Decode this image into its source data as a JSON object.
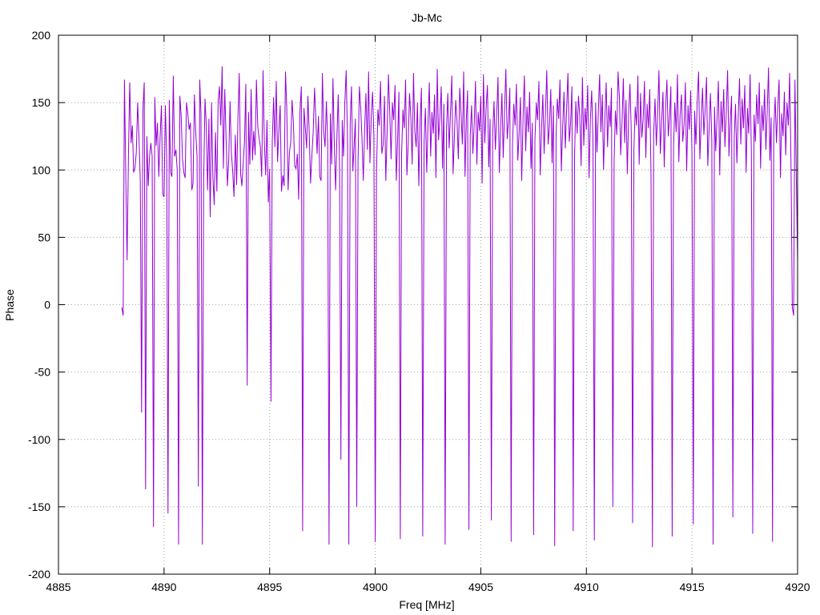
{
  "chart_data": {
    "type": "line",
    "title": "Jb-Mc",
    "xlabel": "Freq [MHz]",
    "ylabel": "Phase",
    "xlim": [
      4885,
      4920
    ],
    "ylim": [
      -200,
      200
    ],
    "x_ticks": [
      4885,
      4890,
      4895,
      4900,
      4905,
      4910,
      4915,
      4920
    ],
    "y_ticks": [
      -200,
      -150,
      -100,
      -50,
      0,
      50,
      100,
      150,
      200
    ],
    "x_tick_labels": [
      "4885",
      "4890",
      "4895",
      "4900",
      "4905",
      "4910",
      "4915",
      "4920"
    ],
    "y_tick_labels": [
      "-200",
      "-150",
      "-100",
      "-50",
      "0",
      "50",
      "100",
      "150",
      "200"
    ],
    "grid": true,
    "legend": "none",
    "line_color": "#9400d3",
    "series": [
      {
        "x_start": 4888.0,
        "x_step": 0.0625,
        "values": [
          -2,
          -8,
          167,
          95,
          33,
          110,
          165,
          120,
          133,
          98,
          102,
          113,
          150,
          125,
          92,
          -80,
          145,
          165,
          -137,
          125,
          88,
          110,
          120,
          110,
          -165,
          154,
          118,
          135,
          95,
          124,
          148,
          82,
          80,
          148,
          108,
          -155,
          152,
          98,
          95,
          170,
          110,
          115,
          100,
          -178,
          155,
          140,
          108,
          98,
          94,
          150,
          142,
          130,
          135,
          85,
          90,
          156,
          128,
          110,
          -135,
          167,
          142,
          -178,
          90,
          153,
          133,
          85,
          138,
          65,
          150,
          95,
          74,
          128,
          84,
          151,
          162,
          133,
          177,
          101,
          160,
          124,
          88,
          107,
          151,
          113,
          99,
          80,
          126,
          89,
          140,
          172,
          97,
          88,
          106,
          122,
          164,
          -60,
          143,
          104,
          160,
          107,
          129,
          111,
          167,
          132,
          124,
          117,
          95,
          174,
          121,
          96,
          137,
          76,
          101,
          -72,
          121,
          154,
          117,
          166,
          106,
          130,
          148,
          84,
          96,
          88,
          173,
          146,
          85,
          113,
          121,
          152,
          135,
          103,
          101,
          112,
          78,
          144,
          162,
          -168,
          146,
          132,
          116,
          155,
          127,
          90,
          111,
          128,
          161,
          138,
          112,
          140,
          95,
          92,
          172,
          128,
          117,
          151,
          121,
          -178,
          142,
          104,
          168,
          118,
          85,
          126,
          156,
          97,
          -115,
          137,
          110,
          151,
          174,
          120,
          -178,
          134,
          162,
          99,
          118,
          138,
          -150,
          106,
          162,
          147,
          123,
          92,
          131,
          157,
          115,
          173,
          105,
          140,
          158,
          125,
          -176,
          98,
          145,
          133,
          166,
          112,
          119,
          155,
          92,
          128,
          171,
          143,
          108,
          150,
          137,
          163,
          92,
          124,
          158,
          -174,
          112,
          145,
          131,
          167,
          96,
          120,
          157,
          139,
          104,
          172,
          129,
          117,
          150,
          88,
          136,
          161,
          -172,
          121,
          146,
          98,
          134,
          165,
          110,
          143,
          127,
          156,
          94,
          175,
          122,
          138,
          162,
          101,
          149,
          -178,
          130,
          157,
          116,
          141,
          170,
          97,
          126,
          152,
          135,
          108,
          161,
          142,
          119,
          173,
          95,
          137,
          159,
          -167,
          125,
          148,
          112,
          134,
          166,
          104,
          143,
          129,
          155,
          90,
          171,
          120,
          146,
          163,
          102,
          138,
          -160,
          127,
          151,
          115,
          140,
          169,
          98,
          131,
          157,
          109,
          144,
          175,
          123,
          136,
          161,
          -176,
          118,
          149,
          133,
          164,
          107,
          126,
          154,
          92,
          139,
          170,
          114,
          147,
          128,
          158,
          101,
          135,
          -171,
          122,
          150,
          137,
          166,
          96,
          129,
          156,
          112,
          143,
          174,
          119,
          132,
          160,
          105,
          148,
          -179,
          125,
          153,
          138,
          167,
          99,
          131,
          158,
          116,
          145,
          172,
          121,
          134,
          162,
          -168,
          110,
          151,
          127,
          155,
          140,
          103,
          169,
          118,
          146,
          130,
          163,
          94,
          137,
          159,
          123,
          -175,
          150,
          113,
          142,
          171,
          128,
          156,
          100,
          139,
          165,
          117,
          148,
          132,
          161,
          -150,
          107,
          144,
          126,
          173,
          154,
          111,
          136,
          168,
          120,
          152,
          97,
          141,
          164,
          129,
          -162,
          115,
          147,
          133,
          170,
          104,
          157,
          124,
          138,
          166,
          109,
          149,
          131,
          160,
          95,
          -180,
          127,
          153,
          118,
          143,
          174,
          112,
          135,
          158,
          102,
          146,
          167,
          125,
          139,
          162,
          -172,
          116,
          150,
          128,
          171,
          106,
          141,
          156,
          121,
          134,
          165,
          99,
          148,
          130,
          159,
          113,
          -163,
          144,
          119,
          152,
          173,
          108,
          137,
          161,
          126,
          145,
          169,
          103,
          132,
          157,
          122,
          -178,
          147,
          114,
          140,
          166,
          96,
          151,
          128,
          160,
          117,
          143,
          174,
          110,
          136,
          155,
          -158,
          124,
          149,
          105,
          138,
          168,
          119,
          153,
          131,
          163,
          98,
          146,
          127,
          171,
          112,
          -170,
          141,
          121,
          156,
          134,
          165,
          101,
          148,
          129,
          160,
          115,
          144,
          176,
          107,
          139,
          -176,
          130,
          154,
          120,
          147,
          167,
          94,
          142,
          125,
          158,
          111,
          150,
          133,
          172,
          104
        ],
        "min": -180,
        "max": 180
      }
    ]
  }
}
